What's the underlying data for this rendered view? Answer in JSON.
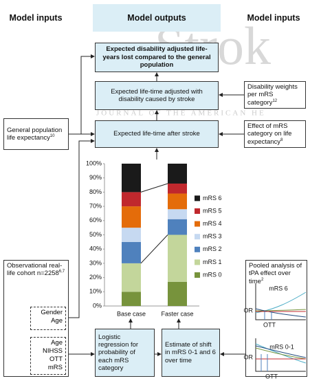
{
  "headers": {
    "left": "Model inputs",
    "center": "Model outputs",
    "right": "Model inputs"
  },
  "watermark": {
    "logo": "Strok",
    "journal": "JOURNAL OF THE AMERICAN HE"
  },
  "outputs": [
    "Expected disability adjusted life-years lost compared to the general population",
    "Expected life-time adjusted with disability caused by stroke",
    "Expected life-time after stroke"
  ],
  "left_inputs": {
    "general": {
      "text": "General population life expectancy",
      "sup": "10"
    },
    "cohort": {
      "text": "Observational real-life cohort n=2258",
      "sup": "6,7",
      "group1": [
        "Gender",
        "Age"
      ],
      "group2": [
        "Age",
        "NIHSS",
        "OTT",
        "mRS"
      ]
    }
  },
  "right_inputs": {
    "weights": {
      "text": "Disability weights per mRS category",
      "sup": "12"
    },
    "effect": {
      "text": "Effect of mRS category on life expectancy",
      "sup": "8"
    },
    "pooled": {
      "text": "Pooled analysis of tPA effect over time",
      "sup": "2",
      "charts": [
        {
          "label": "mRS 6",
          "y": "OR",
          "x": "OTT"
        },
        {
          "label": "mRS 0-1",
          "y": "OR",
          "x": "OTT"
        }
      ]
    }
  },
  "methods": [
    "Logistic regression for probability of each mRS category",
    "Estimate of shift in mRS 0-1 and 6 over time"
  ],
  "chart_data": {
    "type": "stacked_bar",
    "categories": [
      "Base case",
      "Faster case"
    ],
    "series": [
      {
        "name": "mRS 0",
        "color": "#77933c",
        "values": [
          10,
          17
        ]
      },
      {
        "name": "mRS 1",
        "color": "#c3d69b",
        "values": [
          20,
          33
        ]
      },
      {
        "name": "mRS 2",
        "color": "#4f81bd",
        "values": [
          15,
          11
        ]
      },
      {
        "name": "mRS 3",
        "color": "#c6d9f1",
        "values": [
          10,
          7
        ]
      },
      {
        "name": "mRS 4",
        "color": "#e46c0a",
        "values": [
          15,
          11
        ]
      },
      {
        "name": "mRS 5",
        "color": "#c0282d",
        "values": [
          10,
          7
        ]
      },
      {
        "name": "mRS 6",
        "color": "#1a1a1a",
        "values": [
          20,
          14
        ]
      }
    ],
    "ylim": [
      0,
      100
    ],
    "yticks": [
      {
        "value": 0,
        "label": "0%"
      },
      {
        "value": 10,
        "label": "10%"
      },
      {
        "value": 20,
        "label": "20%"
      },
      {
        "value": 30,
        "label": "30%"
      },
      {
        "value": 40,
        "label": "40%"
      },
      {
        "value": 50,
        "label": "50%"
      },
      {
        "value": 60,
        "label": "60%"
      },
      {
        "value": 70,
        "label": "70%"
      },
      {
        "value": 80,
        "label": "80%"
      },
      {
        "value": 90,
        "label": "90%"
      },
      {
        "value": 100,
        "label": "100%"
      }
    ]
  }
}
